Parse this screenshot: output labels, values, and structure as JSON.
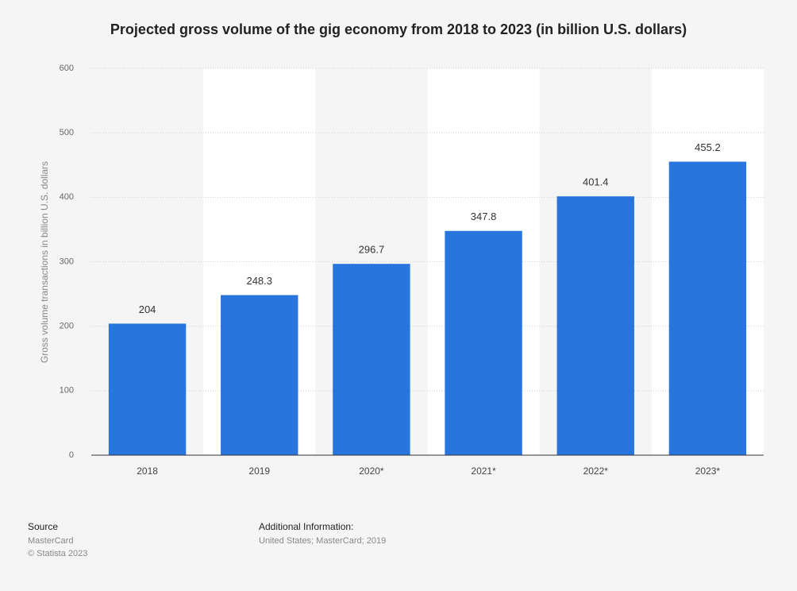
{
  "chart_data": {
    "type": "bar",
    "title": "Projected gross volume of the gig economy from 2018 to 2023 (in billion U.S. dollars)",
    "y_label": "Gross volume transactions in billion U.S. dollars",
    "categories": [
      "2018",
      "2019",
      "2020*",
      "2021*",
      "2022*",
      "2023*"
    ],
    "values": [
      204,
      248.3,
      296.7,
      347.8,
      401.4,
      455.2
    ],
    "color": "#2876dd",
    "ylim": [
      0,
      600
    ],
    "yticks": [
      0,
      100,
      200,
      300,
      400,
      500,
      600
    ],
    "grid": true
  },
  "footer": {
    "source_heading": "Source",
    "source": "MasterCard",
    "copyright": "© Statista 2023",
    "info_heading": "Additional Information:",
    "info": "United States; MasterCard; 2019"
  }
}
